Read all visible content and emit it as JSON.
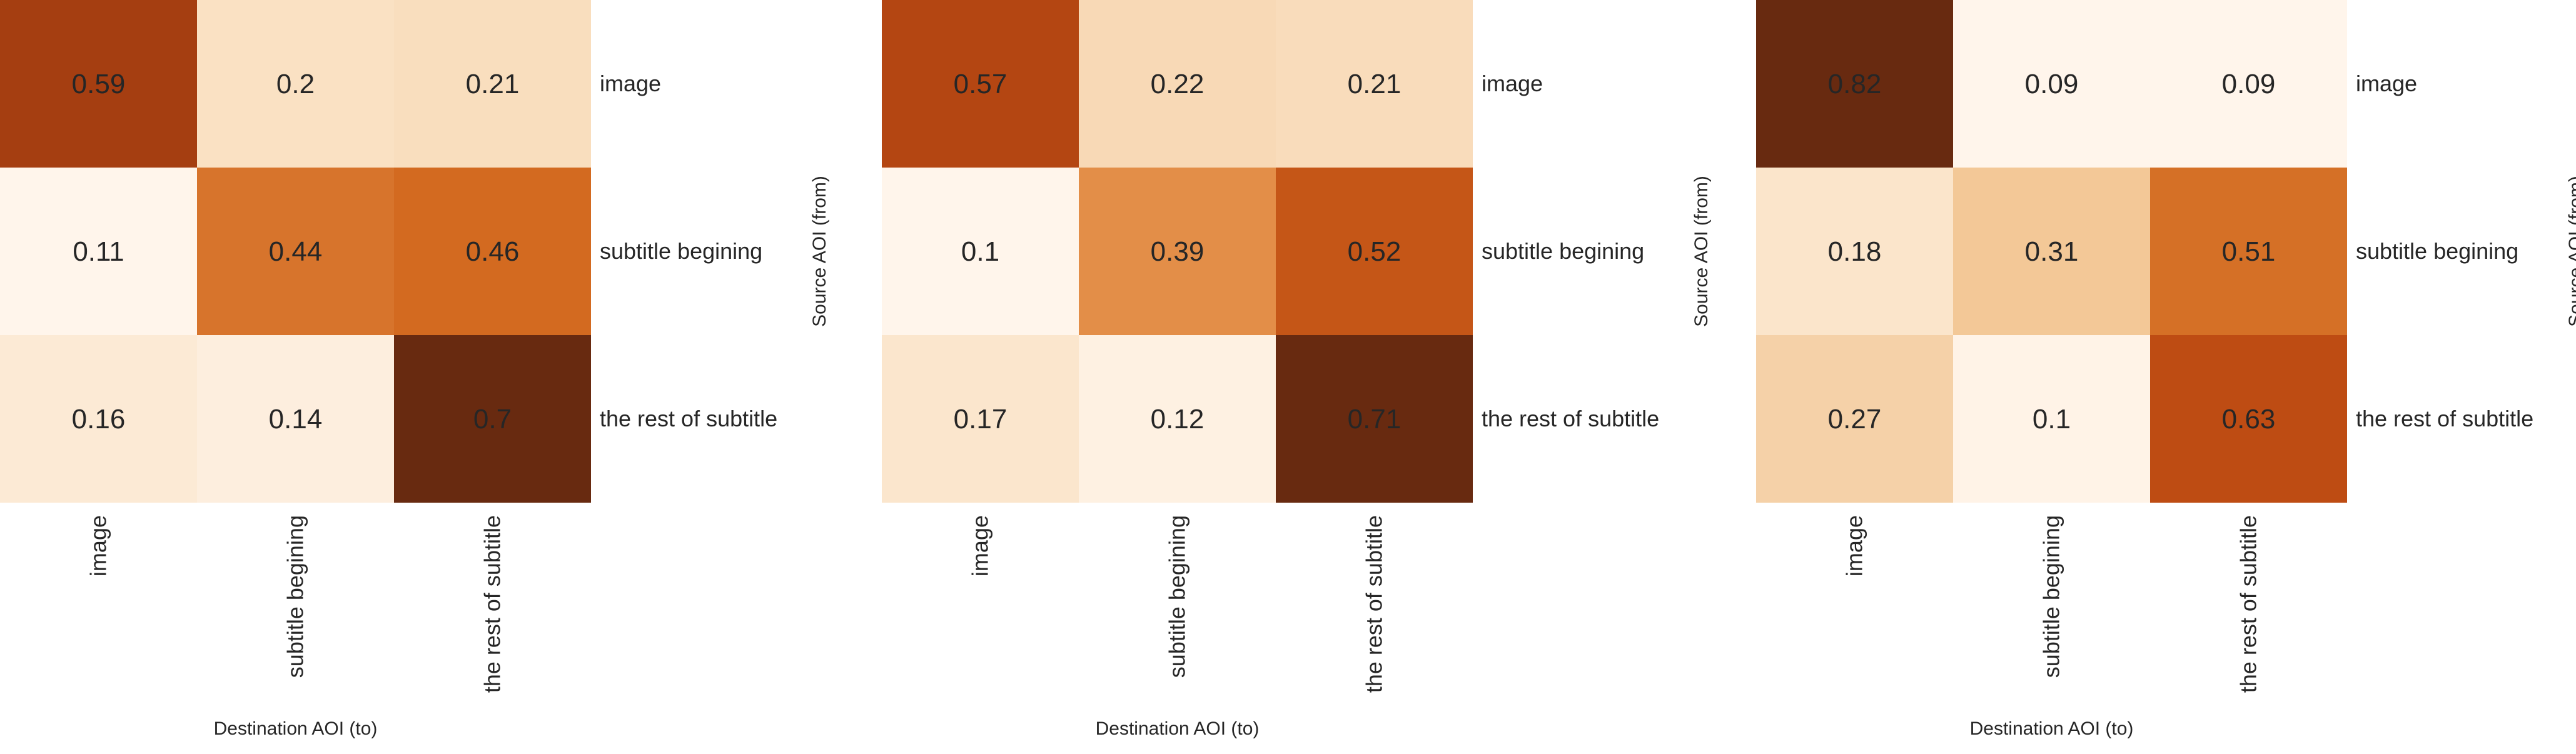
{
  "chart_data": [
    {
      "type": "heatmap",
      "rows": [
        "image",
        "subtitle begining",
        "the rest of subtitle"
      ],
      "columns": [
        "image",
        "subtitle begining",
        "the rest of subtitle"
      ],
      "values": [
        [
          0.59,
          0.2,
          0.21
        ],
        [
          0.11,
          0.44,
          0.46
        ],
        [
          0.16,
          0.14,
          0.7
        ]
      ],
      "xlabel": "Destination AOI (to)",
      "ylabel": "Source AOI (from)",
      "colormap": "Oranges",
      "colors": {
        "low": "#fff5eb",
        "high": "#6a2b10"
      }
    },
    {
      "type": "heatmap",
      "rows": [
        "image",
        "subtitle begining",
        "the rest of subtitle"
      ],
      "columns": [
        "image",
        "subtitle begining",
        "the rest of subtitle"
      ],
      "values": [
        [
          0.57,
          0.22,
          0.21
        ],
        [
          0.1,
          0.39,
          0.52
        ],
        [
          0.17,
          0.12,
          0.71
        ]
      ],
      "xlabel": "Destination AOI (to)",
      "ylabel": "Source AOI (from)",
      "colormap": "Oranges",
      "colors": {
        "low": "#fff5eb",
        "high": "#6a2b10"
      }
    },
    {
      "type": "heatmap",
      "rows": [
        "image",
        "subtitle begining",
        "the rest of subtitle"
      ],
      "columns": [
        "image",
        "subtitle begining",
        "the rest of subtitle"
      ],
      "values": [
        [
          0.82,
          0.09,
          0.09
        ],
        [
          0.18,
          0.31,
          0.51
        ],
        [
          0.27,
          0.1,
          0.63
        ]
      ],
      "xlabel": "Destination AOI (to)",
      "ylabel": "Source AOI (from)",
      "colormap": "Oranges",
      "colors": {
        "low": "#fff5eb",
        "high": "#6a2b10"
      }
    }
  ]
}
